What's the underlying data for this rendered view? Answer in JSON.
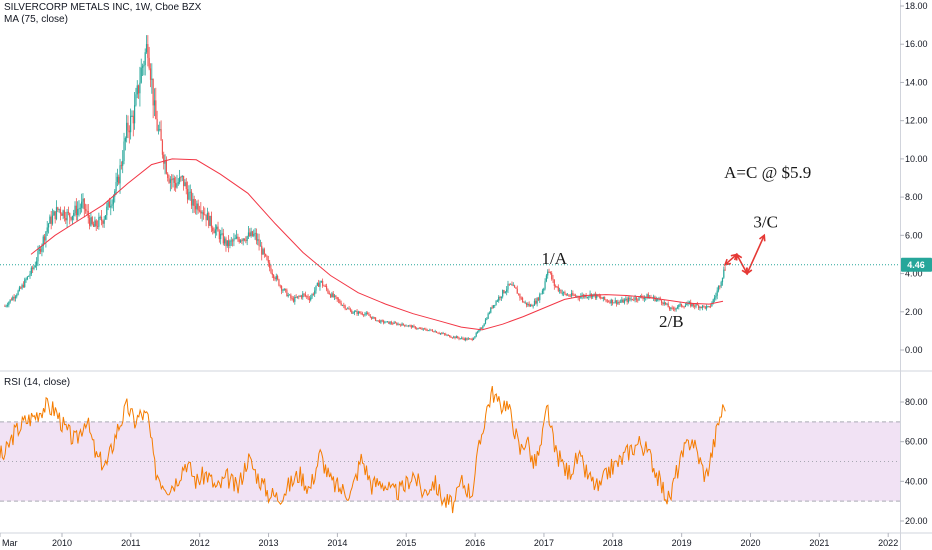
{
  "header": {
    "title": "SILVERCORP METALS INC, 1W, Cboe BZX",
    "ma_label": "MA (75, close)",
    "rsi_label": "RSI (14, close)"
  },
  "colors": {
    "up": "#26a69a",
    "down": "#ef5350",
    "ma": "#f23645",
    "rsi": "#f57c00",
    "rsi_band": "#e1bee7",
    "last_price": "#26a69a",
    "arrow": "#e53935"
  },
  "chart_data": [
    {
      "type": "candlestick",
      "title": "SILVERCORP METALS INC, 1W, Cboe BZX",
      "x_ticks": [
        "Mar",
        "2010",
        "2011",
        "2012",
        "2013",
        "2014",
        "2015",
        "2016",
        "2017",
        "2018",
        "2019",
        "2020",
        "2021",
        "2022"
      ],
      "y_ticks": [
        "0.00",
        "2.00",
        "4.00",
        "6.00",
        "8.00",
        "10.00",
        "12.00",
        "14.00",
        "16.00",
        "18.00"
      ],
      "ylim": [
        -0.9,
        18
      ],
      "last_price": 4.46,
      "last_price_label": "4.46",
      "price_path": [
        [
          2009.17,
          2.3
        ],
        [
          2009.4,
          3.2
        ],
        [
          2009.6,
          4.4
        ],
        [
          2009.8,
          6.6
        ],
        [
          2009.95,
          7.4
        ],
        [
          2010.1,
          7.0
        ],
        [
          2010.3,
          7.6
        ],
        [
          2010.45,
          6.4
        ],
        [
          2010.6,
          6.9
        ],
        [
          2010.8,
          8.6
        ],
        [
          2010.95,
          11.6
        ],
        [
          2011.05,
          12.4
        ],
        [
          2011.15,
          14.6
        ],
        [
          2011.25,
          16.1
        ],
        [
          2011.35,
          12.2
        ],
        [
          2011.45,
          10.6
        ],
        [
          2011.55,
          9.1
        ],
        [
          2011.65,
          8.7
        ],
        [
          2011.75,
          8.9
        ],
        [
          2011.9,
          7.6
        ],
        [
          2012.0,
          7.6
        ],
        [
          2012.2,
          6.4
        ],
        [
          2012.4,
          5.5
        ],
        [
          2012.6,
          5.9
        ],
        [
          2012.8,
          6.0
        ],
        [
          2013.0,
          4.4
        ],
        [
          2013.2,
          3.2
        ],
        [
          2013.35,
          2.6
        ],
        [
          2013.5,
          2.9
        ],
        [
          2013.6,
          2.7
        ],
        [
          2013.75,
          3.6
        ],
        [
          2013.9,
          2.9
        ],
        [
          2014.0,
          2.6
        ],
        [
          2014.2,
          2.0
        ],
        [
          2014.4,
          1.9
        ],
        [
          2014.6,
          1.5
        ],
        [
          2014.8,
          1.4
        ],
        [
          2015.0,
          1.3
        ],
        [
          2015.2,
          1.1
        ],
        [
          2015.4,
          1.0
        ],
        [
          2015.6,
          0.75
        ],
        [
          2015.8,
          0.6
        ],
        [
          2015.95,
          0.55
        ],
        [
          2016.1,
          1.2
        ],
        [
          2016.25,
          2.3
        ],
        [
          2016.4,
          3.0
        ],
        [
          2016.5,
          3.4
        ],
        [
          2016.6,
          3.1
        ],
        [
          2016.7,
          2.5
        ],
        [
          2016.8,
          2.3
        ],
        [
          2016.9,
          2.6
        ],
        [
          2017.0,
          3.3
        ],
        [
          2017.05,
          4.3
        ],
        [
          2017.15,
          3.4
        ],
        [
          2017.3,
          2.9
        ],
        [
          2017.5,
          2.8
        ],
        [
          2017.7,
          2.9
        ],
        [
          2017.9,
          2.6
        ],
        [
          2018.1,
          2.5
        ],
        [
          2018.3,
          2.7
        ],
        [
          2018.5,
          2.8
        ],
        [
          2018.7,
          2.6
        ],
        [
          2018.85,
          2.1
        ],
        [
          2018.95,
          2.3
        ],
        [
          2019.1,
          2.4
        ],
        [
          2019.25,
          2.3
        ],
        [
          2019.4,
          2.2
        ],
        [
          2019.5,
          2.9
        ],
        [
          2019.6,
          4.0
        ],
        [
          2019.65,
          4.5
        ]
      ],
      "ma_path": [
        [
          2009.55,
          5.0
        ],
        [
          2009.9,
          6.0
        ],
        [
          2010.25,
          6.8
        ],
        [
          2010.6,
          7.6
        ],
        [
          2010.95,
          8.7
        ],
        [
          2011.3,
          9.7
        ],
        [
          2011.6,
          10.0
        ],
        [
          2011.95,
          9.95
        ],
        [
          2012.3,
          9.2
        ],
        [
          2012.7,
          8.2
        ],
        [
          2013.1,
          6.6
        ],
        [
          2013.5,
          5.1
        ],
        [
          2013.9,
          3.9
        ],
        [
          2014.3,
          3.0
        ],
        [
          2014.7,
          2.4
        ],
        [
          2015.1,
          1.9
        ],
        [
          2015.5,
          1.5
        ],
        [
          2015.8,
          1.2
        ],
        [
          2016.1,
          1.05
        ],
        [
          2016.4,
          1.35
        ],
        [
          2016.7,
          1.75
        ],
        [
          2017.0,
          2.2
        ],
        [
          2017.3,
          2.65
        ],
        [
          2017.6,
          2.85
        ],
        [
          2017.9,
          2.9
        ],
        [
          2018.2,
          2.85
        ],
        [
          2018.5,
          2.75
        ],
        [
          2018.8,
          2.6
        ],
        [
          2019.1,
          2.45
        ],
        [
          2019.4,
          2.4
        ],
        [
          2019.6,
          2.55
        ]
      ],
      "annotations": [
        {
          "text": "1/A",
          "x": 2017.15,
          "y": 4.5
        },
        {
          "text": "2/B",
          "x": 2018.85,
          "y": 1.2
        },
        {
          "text": "3/C",
          "x": 2020.22,
          "y": 6.4
        },
        {
          "text": "A=C @ $5.9",
          "x": 2020.25,
          "y": 9.0
        }
      ],
      "projection_path": [
        [
          2019.63,
          4.46
        ],
        [
          2019.8,
          5.0
        ],
        [
          2019.95,
          4.0
        ],
        [
          2020.2,
          6.0
        ]
      ]
    },
    {
      "type": "line",
      "title": "RSI (14, close)",
      "y_ticks": [
        "20.00",
        "40.00",
        "60.00",
        "80.00"
      ],
      "ylim": [
        19,
        93
      ],
      "band": [
        30,
        70
      ],
      "midline": 50,
      "rsi_path": [
        [
          2009.0,
          58
        ],
        [
          2009.15,
          52
        ],
        [
          2009.3,
          64
        ],
        [
          2009.45,
          70
        ],
        [
          2009.6,
          73
        ],
        [
          2009.75,
          78
        ],
        [
          2009.9,
          76
        ],
        [
          2010.05,
          66
        ],
        [
          2010.2,
          60
        ],
        [
          2010.35,
          72
        ],
        [
          2010.5,
          52
        ],
        [
          2010.65,
          48
        ],
        [
          2010.8,
          66
        ],
        [
          2010.95,
          78
        ],
        [
          2011.05,
          70
        ],
        [
          2011.15,
          74
        ],
        [
          2011.25,
          72
        ],
        [
          2011.35,
          46
        ],
        [
          2011.45,
          40
        ],
        [
          2011.55,
          37
        ],
        [
          2011.65,
          40
        ],
        [
          2011.8,
          50
        ],
        [
          2011.95,
          40
        ],
        [
          2012.1,
          44
        ],
        [
          2012.25,
          36
        ],
        [
          2012.4,
          42
        ],
        [
          2012.55,
          36
        ],
        [
          2012.7,
          52
        ],
        [
          2012.85,
          42
        ],
        [
          2013.0,
          34
        ],
        [
          2013.15,
          32
        ],
        [
          2013.3,
          38
        ],
        [
          2013.45,
          44
        ],
        [
          2013.6,
          36
        ],
        [
          2013.75,
          54
        ],
        [
          2013.9,
          40
        ],
        [
          2014.05,
          36
        ],
        [
          2014.2,
          34
        ],
        [
          2014.35,
          52
        ],
        [
          2014.5,
          38
        ],
        [
          2014.65,
          40
        ],
        [
          2014.8,
          34
        ],
        [
          2014.95,
          36
        ],
        [
          2015.1,
          44
        ],
        [
          2015.25,
          34
        ],
        [
          2015.4,
          40
        ],
        [
          2015.55,
          30
        ],
        [
          2015.7,
          28
        ],
        [
          2015.8,
          40
        ],
        [
          2015.95,
          34
        ],
        [
          2016.05,
          55
        ],
        [
          2016.15,
          74
        ],
        [
          2016.25,
          86
        ],
        [
          2016.35,
          78
        ],
        [
          2016.45,
          80
        ],
        [
          2016.55,
          70
        ],
        [
          2016.65,
          55
        ],
        [
          2016.75,
          62
        ],
        [
          2016.85,
          48
        ],
        [
          2016.95,
          56
        ],
        [
          2017.05,
          78
        ],
        [
          2017.15,
          56
        ],
        [
          2017.25,
          50
        ],
        [
          2017.35,
          44
        ],
        [
          2017.5,
          52
        ],
        [
          2017.65,
          42
        ],
        [
          2017.8,
          36
        ],
        [
          2017.95,
          46
        ],
        [
          2018.1,
          50
        ],
        [
          2018.25,
          56
        ],
        [
          2018.4,
          60
        ],
        [
          2018.55,
          52
        ],
        [
          2018.7,
          38
        ],
        [
          2018.82,
          30
        ],
        [
          2018.92,
          44
        ],
        [
          2019.05,
          56
        ],
        [
          2019.15,
          62
        ],
        [
          2019.25,
          52
        ],
        [
          2019.35,
          42
        ],
        [
          2019.45,
          56
        ],
        [
          2019.55,
          72
        ],
        [
          2019.65,
          81
        ]
      ]
    }
  ]
}
